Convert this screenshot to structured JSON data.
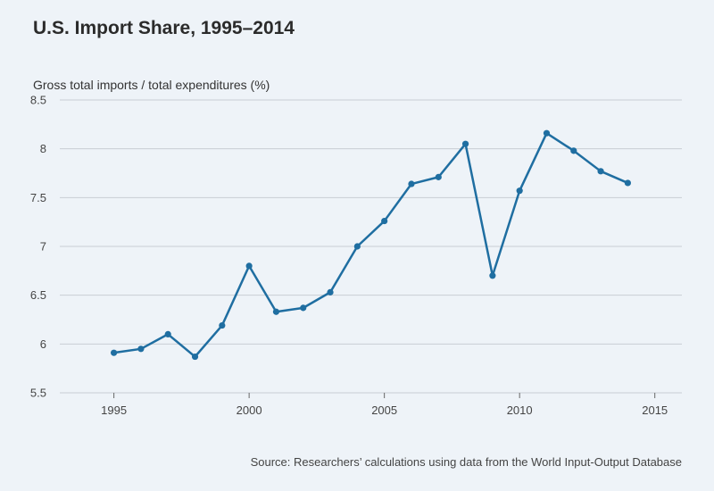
{
  "chart_data": {
    "type": "line",
    "title": "U.S. Import Share, 1995–2014",
    "ylabel": "Gross total imports / total expenditures (%)",
    "xlabel": "",
    "source": "Source: Researchers’ calculations using data from the World Input-Output Database",
    "x": [
      1995,
      1996,
      1997,
      1998,
      1999,
      2000,
      2001,
      2002,
      2003,
      2004,
      2005,
      2006,
      2007,
      2008,
      2009,
      2010,
      2011,
      2012,
      2013,
      2014
    ],
    "series": [
      {
        "values": [
          5.91,
          5.95,
          6.1,
          5.87,
          6.19,
          6.8,
          6.33,
          6.37,
          6.53,
          7.0,
          7.26,
          7.64,
          7.71,
          8.05,
          6.7,
          7.57,
          8.16,
          7.98,
          7.77,
          7.65
        ]
      }
    ],
    "xlim": [
      1995,
      2015
    ],
    "ylim": [
      5.5,
      8.5
    ],
    "xticks": [
      "1995",
      "2000",
      "2005",
      "2010",
      "2015"
    ],
    "yticks": [
      "5.5",
      "6",
      "6.5",
      "7",
      "7.5",
      "8",
      "8.5"
    ],
    "grid": "horizontal",
    "line_color": "#1f6ea1",
    "grid_color": "#c8cdd3"
  }
}
